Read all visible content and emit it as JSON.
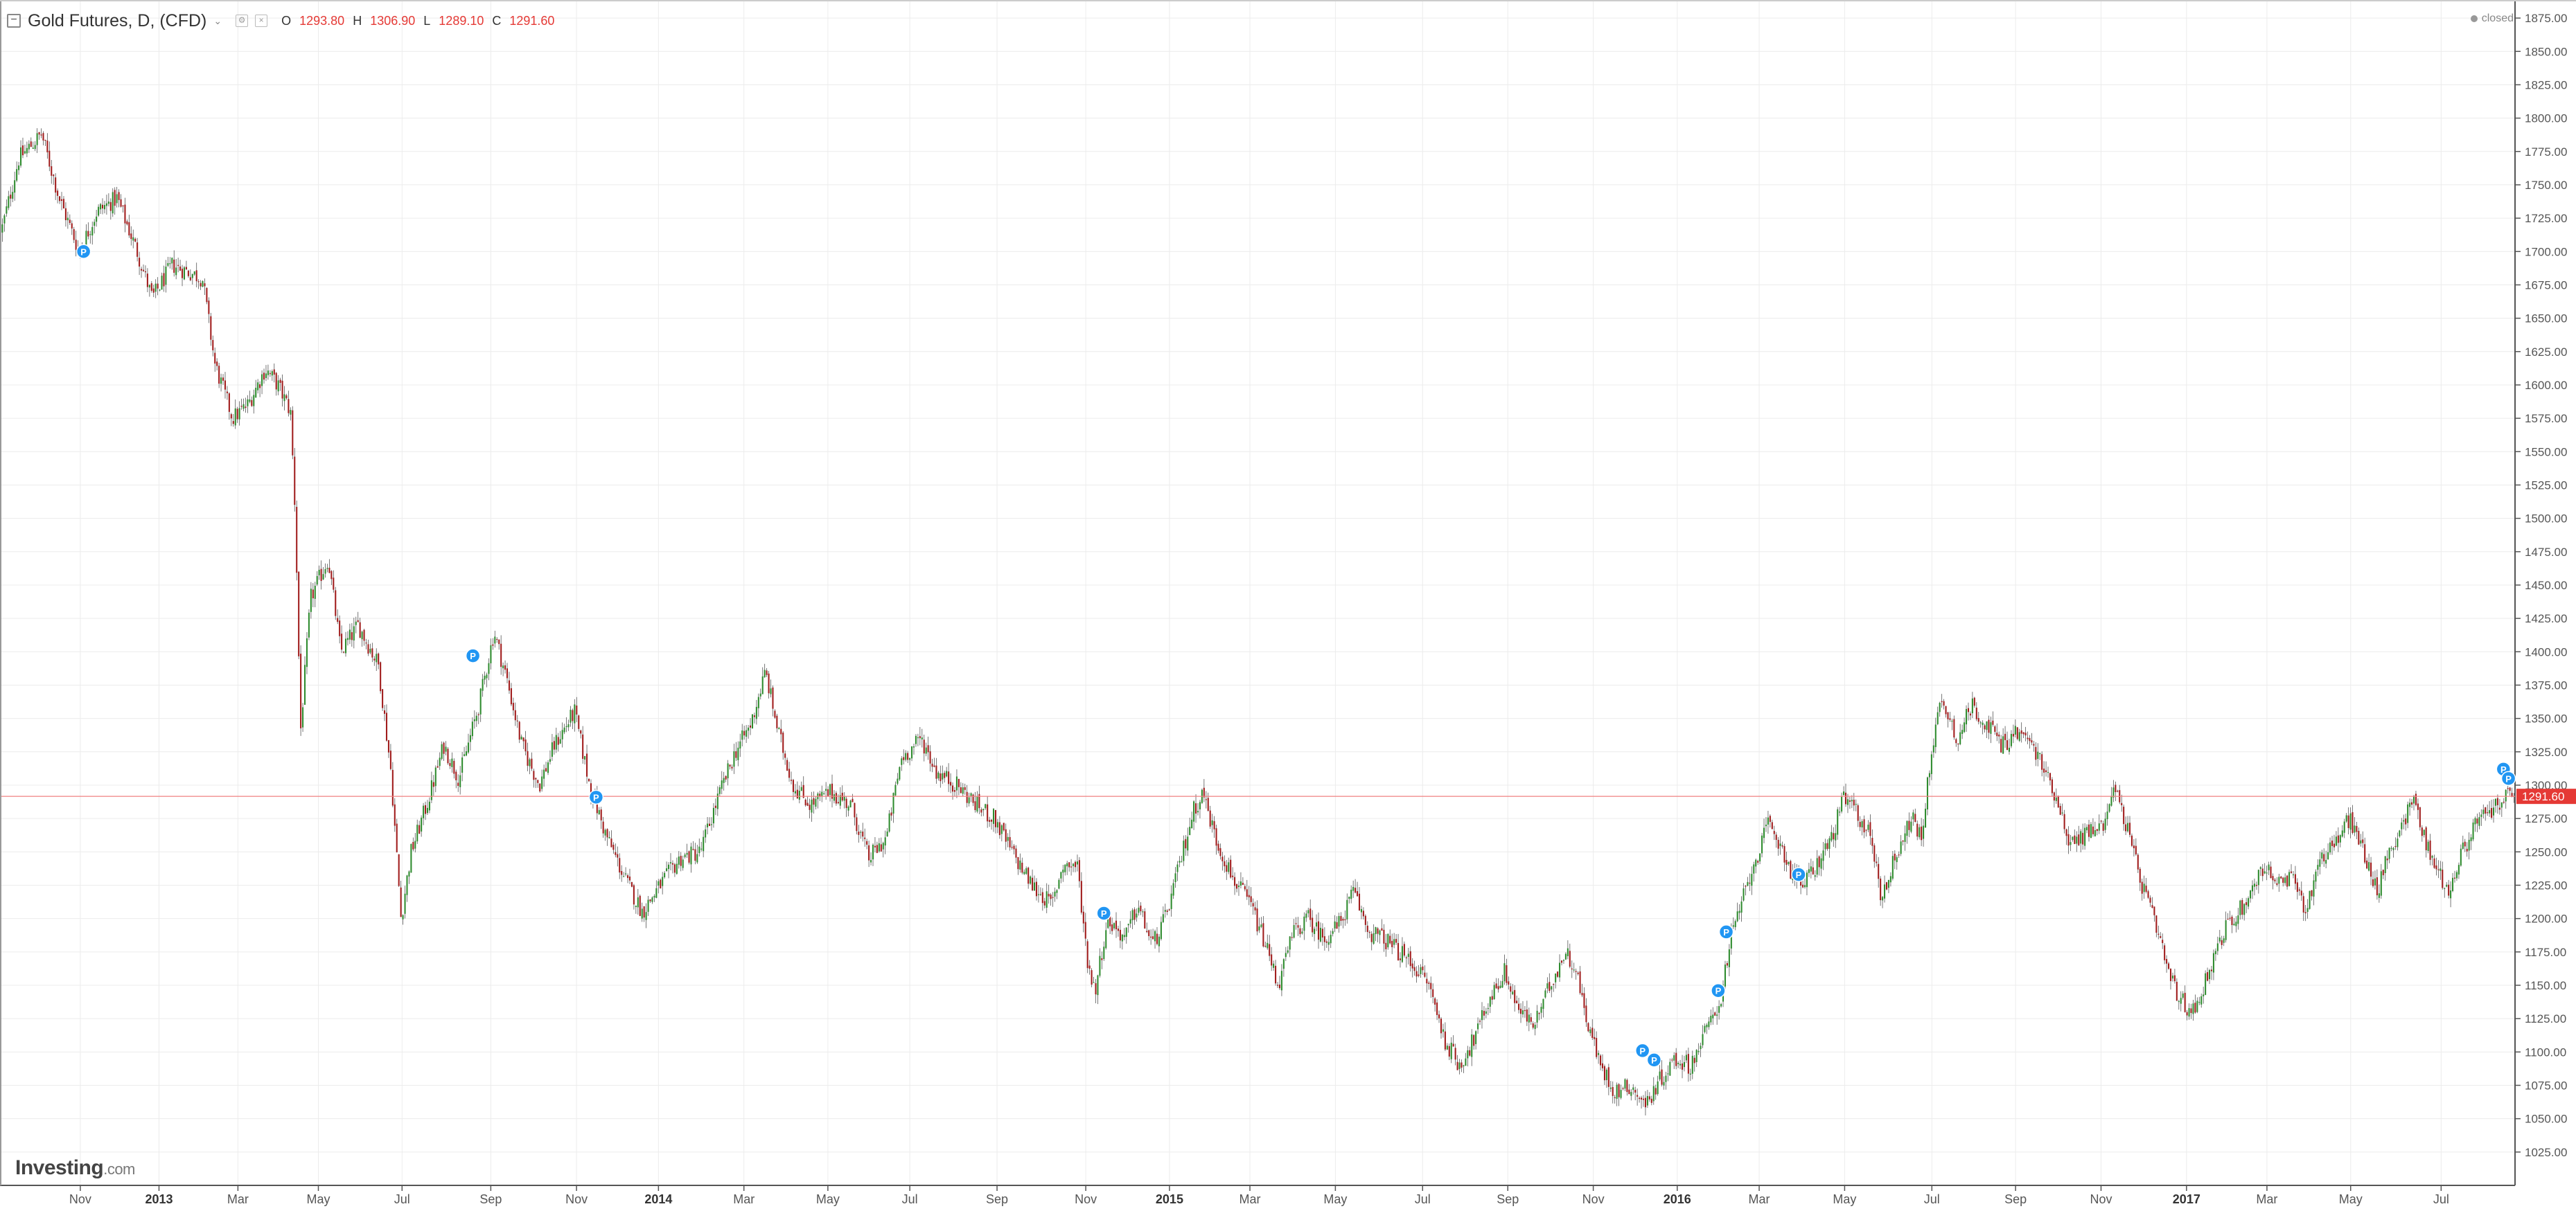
{
  "header": {
    "title": "Gold Futures, D, (CFD)",
    "chevron": "⌄",
    "ohlc": [
      {
        "k": "O",
        "v": "1293.80"
      },
      {
        "k": "H",
        "v": "1306.90"
      },
      {
        "k": "L",
        "v": "1289.10"
      },
      {
        "k": "C",
        "v": "1291.60"
      }
    ],
    "status": "closed"
  },
  "logo": {
    "brand": "Investing",
    "suffix": ".com"
  },
  "colors": {
    "up": "#2e8b2e",
    "down": "#a01c1c",
    "price_line": "#f08080",
    "price_label_bg": "#e53935",
    "marker": "#2196f3",
    "grid": "#ececec",
    "axis_text": "#555555"
  },
  "chart_data": {
    "type": "candlestick",
    "ylim": [
      1000,
      1887.5
    ],
    "y_ticks": [
      "1025.00",
      "1050.00",
      "1075.00",
      "1100.00",
      "1125.00",
      "1150.00",
      "1175.00",
      "1200.00",
      "1225.00",
      "1250.00",
      "1275.00",
      "1300.00",
      "1325.00",
      "1350.00",
      "1375.00",
      "1400.00",
      "1425.00",
      "1450.00",
      "1475.00",
      "1500.00",
      "1525.00",
      "1550.00",
      "1575.00",
      "1600.00",
      "1625.00",
      "1650.00",
      "1675.00",
      "1700.00",
      "1725.00",
      "1750.00",
      "1775.00",
      "1800.00",
      "1825.00",
      "1850.00",
      "1875.00"
    ],
    "x_ticks": [
      {
        "label": "Nov",
        "pos": 0.0314,
        "bold": false
      },
      {
        "label": "2013",
        "pos": 0.0627,
        "bold": true
      },
      {
        "label": "Mar",
        "pos": 0.0941,
        "bold": false
      },
      {
        "label": "May",
        "pos": 0.1261,
        "bold": false
      },
      {
        "label": "Jul",
        "pos": 0.1594,
        "bold": false
      },
      {
        "label": "Sep",
        "pos": 0.1947,
        "bold": false
      },
      {
        "label": "Nov",
        "pos": 0.2288,
        "bold": false
      },
      {
        "label": "2014",
        "pos": 0.2614,
        "bold": true
      },
      {
        "label": "Mar",
        "pos": 0.2954,
        "bold": false
      },
      {
        "label": "May",
        "pos": 0.3288,
        "bold": false
      },
      {
        "label": "Jul",
        "pos": 0.3614,
        "bold": false
      },
      {
        "label": "Sep",
        "pos": 0.3961,
        "bold": false
      },
      {
        "label": "Nov",
        "pos": 0.4314,
        "bold": false
      },
      {
        "label": "2015",
        "pos": 0.4647,
        "bold": true
      },
      {
        "label": "Mar",
        "pos": 0.4967,
        "bold": false
      },
      {
        "label": "May",
        "pos": 0.5307,
        "bold": false
      },
      {
        "label": "Jul",
        "pos": 0.5654,
        "bold": false
      },
      {
        "label": "Sep",
        "pos": 0.5993,
        "bold": false
      },
      {
        "label": "Nov",
        "pos": 0.6333,
        "bold": false
      },
      {
        "label": "2016",
        "pos": 0.6667,
        "bold": true
      },
      {
        "label": "Mar",
        "pos": 0.6993,
        "bold": false
      },
      {
        "label": "May",
        "pos": 0.7333,
        "bold": false
      },
      {
        "label": "Jul",
        "pos": 0.768,
        "bold": false
      },
      {
        "label": "Sep",
        "pos": 0.8013,
        "bold": false
      },
      {
        "label": "Nov",
        "pos": 0.8353,
        "bold": false
      },
      {
        "label": "2017",
        "pos": 0.8693,
        "bold": true
      },
      {
        "label": "Mar",
        "pos": 0.9013,
        "bold": false
      },
      {
        "label": "May",
        "pos": 0.9346,
        "bold": false
      },
      {
        "label": "Jul",
        "pos": 0.9706,
        "bold": false
      }
    ],
    "price_anchors": [
      [
        0.0,
        1715
      ],
      [
        0.007,
        1770
      ],
      [
        0.016,
        1788
      ],
      [
        0.023,
        1740
      ],
      [
        0.031,
        1700
      ],
      [
        0.038,
        1730
      ],
      [
        0.046,
        1740
      ],
      [
        0.054,
        1700
      ],
      [
        0.06,
        1665
      ],
      [
        0.068,
        1690
      ],
      [
        0.08,
        1680
      ],
      [
        0.085,
        1615
      ],
      [
        0.092,
        1575
      ],
      [
        0.098,
        1585
      ],
      [
        0.105,
        1612
      ],
      [
        0.11,
        1600
      ],
      [
        0.115,
        1580
      ],
      [
        0.117,
        1500
      ],
      [
        0.119,
        1340
      ],
      [
        0.123,
        1440
      ],
      [
        0.13,
        1470
      ],
      [
        0.135,
        1400
      ],
      [
        0.142,
        1420
      ],
      [
        0.15,
        1390
      ],
      [
        0.155,
        1310
      ],
      [
        0.159,
        1200
      ],
      [
        0.163,
        1250
      ],
      [
        0.17,
        1290
      ],
      [
        0.176,
        1330
      ],
      [
        0.182,
        1305
      ],
      [
        0.19,
        1360
      ],
      [
        0.196,
        1415
      ],
      [
        0.201,
        1380
      ],
      [
        0.207,
        1330
      ],
      [
        0.214,
        1300
      ],
      [
        0.22,
        1330
      ],
      [
        0.228,
        1355
      ],
      [
        0.234,
        1300
      ],
      [
        0.24,
        1265
      ],
      [
        0.248,
        1230
      ],
      [
        0.255,
        1205
      ],
      [
        0.262,
        1225
      ],
      [
        0.27,
        1245
      ],
      [
        0.278,
        1250
      ],
      [
        0.285,
        1290
      ],
      [
        0.292,
        1325
      ],
      [
        0.298,
        1345
      ],
      [
        0.304,
        1385
      ],
      [
        0.309,
        1340
      ],
      [
        0.315,
        1300
      ],
      [
        0.322,
        1285
      ],
      [
        0.33,
        1295
      ],
      [
        0.338,
        1285
      ],
      [
        0.345,
        1245
      ],
      [
        0.352,
        1260
      ],
      [
        0.358,
        1320
      ],
      [
        0.366,
        1335
      ],
      [
        0.372,
        1310
      ],
      [
        0.38,
        1300
      ],
      [
        0.388,
        1285
      ],
      [
        0.395,
        1275
      ],
      [
        0.402,
        1250
      ],
      [
        0.41,
        1225
      ],
      [
        0.418,
        1210
      ],
      [
        0.422,
        1240
      ],
      [
        0.428,
        1240
      ],
      [
        0.432,
        1170
      ],
      [
        0.435,
        1145
      ],
      [
        0.44,
        1200
      ],
      [
        0.447,
        1185
      ],
      [
        0.452,
        1210
      ],
      [
        0.458,
        1180
      ],
      [
        0.463,
        1200
      ],
      [
        0.468,
        1235
      ],
      [
        0.474,
        1280
      ],
      [
        0.478,
        1295
      ],
      [
        0.483,
        1260
      ],
      [
        0.49,
        1230
      ],
      [
        0.497,
        1210
      ],
      [
        0.503,
        1180
      ],
      [
        0.508,
        1150
      ],
      [
        0.514,
        1190
      ],
      [
        0.52,
        1200
      ],
      [
        0.526,
        1185
      ],
      [
        0.532,
        1195
      ],
      [
        0.538,
        1220
      ],
      [
        0.544,
        1190
      ],
      [
        0.55,
        1185
      ],
      [
        0.556,
        1175
      ],
      [
        0.562,
        1165
      ],
      [
        0.568,
        1150
      ],
      [
        0.574,
        1110
      ],
      [
        0.58,
        1090
      ],
      [
        0.586,
        1110
      ],
      [
        0.592,
        1140
      ],
      [
        0.598,
        1160
      ],
      [
        0.604,
        1130
      ],
      [
        0.61,
        1120
      ],
      [
        0.616,
        1150
      ],
      [
        0.622,
        1175
      ],
      [
        0.626,
        1165
      ],
      [
        0.63,
        1130
      ],
      [
        0.636,
        1090
      ],
      [
        0.642,
        1070
      ],
      [
        0.648,
        1075
      ],
      [
        0.654,
        1060
      ],
      [
        0.66,
        1080
      ],
      [
        0.666,
        1095
      ],
      [
        0.672,
        1090
      ],
      [
        0.678,
        1115
      ],
      [
        0.684,
        1140
      ],
      [
        0.688,
        1185
      ],
      [
        0.692,
        1210
      ],
      [
        0.697,
        1240
      ],
      [
        0.703,
        1270
      ],
      [
        0.708,
        1255
      ],
      [
        0.712,
        1235
      ],
      [
        0.717,
        1225
      ],
      [
        0.722,
        1240
      ],
      [
        0.728,
        1260
      ],
      [
        0.733,
        1290
      ],
      [
        0.738,
        1280
      ],
      [
        0.744,
        1260
      ],
      [
        0.748,
        1215
      ],
      [
        0.754,
        1250
      ],
      [
        0.76,
        1275
      ],
      [
        0.764,
        1260
      ],
      [
        0.768,
        1330
      ],
      [
        0.772,
        1365
      ],
      [
        0.778,
        1335
      ],
      [
        0.784,
        1360
      ],
      [
        0.79,
        1345
      ],
      [
        0.796,
        1330
      ],
      [
        0.802,
        1340
      ],
      [
        0.808,
        1330
      ],
      [
        0.813,
        1310
      ],
      [
        0.818,
        1290
      ],
      [
        0.823,
        1255
      ],
      [
        0.83,
        1265
      ],
      [
        0.836,
        1270
      ],
      [
        0.84,
        1300
      ],
      [
        0.844,
        1280
      ],
      [
        0.85,
        1235
      ],
      [
        0.856,
        1200
      ],
      [
        0.862,
        1160
      ],
      [
        0.866,
        1140
      ],
      [
        0.872,
        1130
      ],
      [
        0.878,
        1160
      ],
      [
        0.884,
        1190
      ],
      [
        0.89,
        1205
      ],
      [
        0.895,
        1220
      ],
      [
        0.9,
        1240
      ],
      [
        0.906,
        1225
      ],
      [
        0.912,
        1230
      ],
      [
        0.917,
        1205
      ],
      [
        0.922,
        1245
      ],
      [
        0.928,
        1255
      ],
      [
        0.934,
        1275
      ],
      [
        0.94,
        1250
      ],
      [
        0.945,
        1220
      ],
      [
        0.95,
        1250
      ],
      [
        0.956,
        1275
      ],
      [
        0.96,
        1290
      ],
      [
        0.964,
        1260
      ],
      [
        0.968,
        1240
      ],
      [
        0.974,
        1220
      ],
      [
        0.978,
        1245
      ],
      [
        0.984,
        1270
      ],
      [
        0.99,
        1280
      ],
      [
        0.995,
        1290
      ],
      [
        1.0,
        1291.6
      ]
    ],
    "markers": [
      {
        "pos": 0.0327,
        "price": 1700
      },
      {
        "pos": 0.1876,
        "price": 1397
      },
      {
        "pos": 0.2366,
        "price": 1291
      },
      {
        "pos": 0.4386,
        "price": 1204
      },
      {
        "pos": 0.683,
        "price": 1146
      },
      {
        "pos": 0.6862,
        "price": 1190
      },
      {
        "pos": 0.6529,
        "price": 1101
      },
      {
        "pos": 0.6575,
        "price": 1094
      },
      {
        "pos": 0.715,
        "price": 1233
      },
      {
        "pos": 0.9954,
        "price": 1312
      },
      {
        "pos": 0.9974,
        "price": 1305
      }
    ],
    "last_price": 1291.6,
    "last_price_label": "1291.60"
  }
}
